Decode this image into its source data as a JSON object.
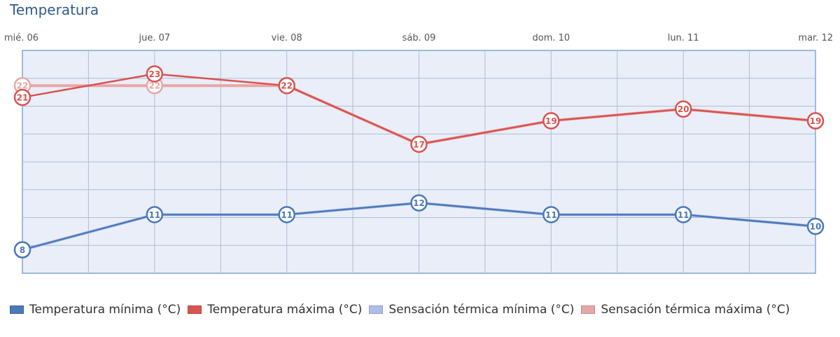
{
  "chart_data": {
    "type": "line",
    "title": "Temperatura",
    "categories": [
      "mié. 06",
      "jue. 07",
      "vie. 08",
      "sáb. 09",
      "dom. 10",
      "lun. 11",
      "mar. 12"
    ],
    "ylim": [
      6,
      25
    ],
    "grid": true,
    "legend_position": "bottom-left",
    "series": [
      {
        "name": "Temperatura mínima (°C)",
        "values": [
          8,
          11,
          11,
          12,
          11,
          11,
          10
        ],
        "color": "#4a7ab8"
      },
      {
        "name": "Temperatura máxima (°C)",
        "values": [
          21,
          23,
          22,
          17,
          19,
          20,
          19
        ],
        "color": "#d9534f"
      },
      {
        "name": "Sensación térmica mínima (°C)",
        "values": [
          8,
          11,
          11,
          12,
          11,
          11,
          10
        ],
        "color": "#aebde8"
      },
      {
        "name": "Sensación térmica máxima (°C)",
        "values": [
          22,
          22,
          22,
          17,
          19,
          20,
          19
        ],
        "color": "#e9a6a6"
      }
    ]
  }
}
